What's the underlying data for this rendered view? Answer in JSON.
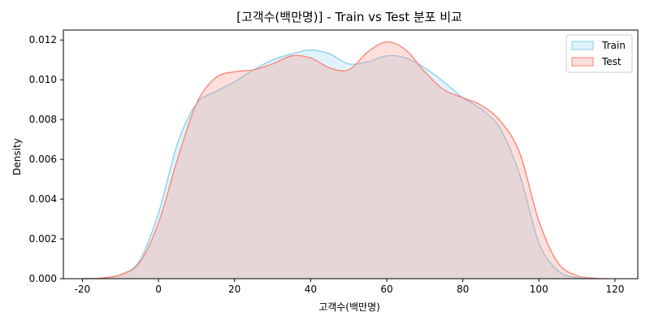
{
  "chart_data": {
    "type": "area",
    "title": "[고객수(백만명)] - Train vs Test 분포 비교",
    "xlabel": "고객수(백만명)",
    "ylabel": "Density",
    "xlim": [
      -25,
      126
    ],
    "ylim": [
      0,
      0.0125
    ],
    "xticks": [
      -20,
      0,
      20,
      40,
      60,
      80,
      100,
      120
    ],
    "yticks": [
      0.0,
      0.002,
      0.004,
      0.006,
      0.008,
      0.01,
      0.012
    ],
    "ytick_labels": [
      "0.000",
      "0.002",
      "0.004",
      "0.006",
      "0.008",
      "0.010",
      "0.012"
    ],
    "grid": false,
    "legend_position": "top-right",
    "series": [
      {
        "name": "Train",
        "line_color": "#87ceeb",
        "fill_color": "#87ceeb",
        "x": [
          -20,
          -15,
          -10,
          -5,
          0,
          5,
          10,
          15,
          20,
          25,
          30,
          35,
          40,
          45,
          50,
          55,
          60,
          65,
          70,
          75,
          80,
          85,
          90,
          95,
          100,
          105,
          110,
          115
        ],
        "y": [
          0.0,
          3e-05,
          0.0002,
          0.0009,
          0.0033,
          0.0068,
          0.0088,
          0.0094,
          0.0099,
          0.0105,
          0.011,
          0.0113,
          0.0115,
          0.0113,
          0.0108,
          0.0109,
          0.0112,
          0.0111,
          0.0106,
          0.0099,
          0.0091,
          0.0085,
          0.0075,
          0.0052,
          0.0018,
          0.0004,
          5e-05,
          0.0
        ]
      },
      {
        "name": "Test",
        "line_color": "#fa8072",
        "fill_color": "#fa8072",
        "x": [
          -20,
          -15,
          -10,
          -5,
          0,
          5,
          10,
          15,
          20,
          25,
          30,
          35,
          40,
          45,
          50,
          55,
          60,
          65,
          70,
          75,
          80,
          85,
          90,
          95,
          100,
          105,
          110,
          115,
          118
        ],
        "y": [
          0.0,
          3e-05,
          0.0002,
          0.0008,
          0.0028,
          0.006,
          0.0088,
          0.0101,
          0.0104,
          0.0105,
          0.0108,
          0.0112,
          0.0111,
          0.0106,
          0.0105,
          0.0114,
          0.0119,
          0.0115,
          0.0104,
          0.0095,
          0.0091,
          0.0087,
          0.0079,
          0.0063,
          0.0029,
          0.0008,
          0.00015,
          2e-05,
          0.0
        ]
      }
    ]
  }
}
